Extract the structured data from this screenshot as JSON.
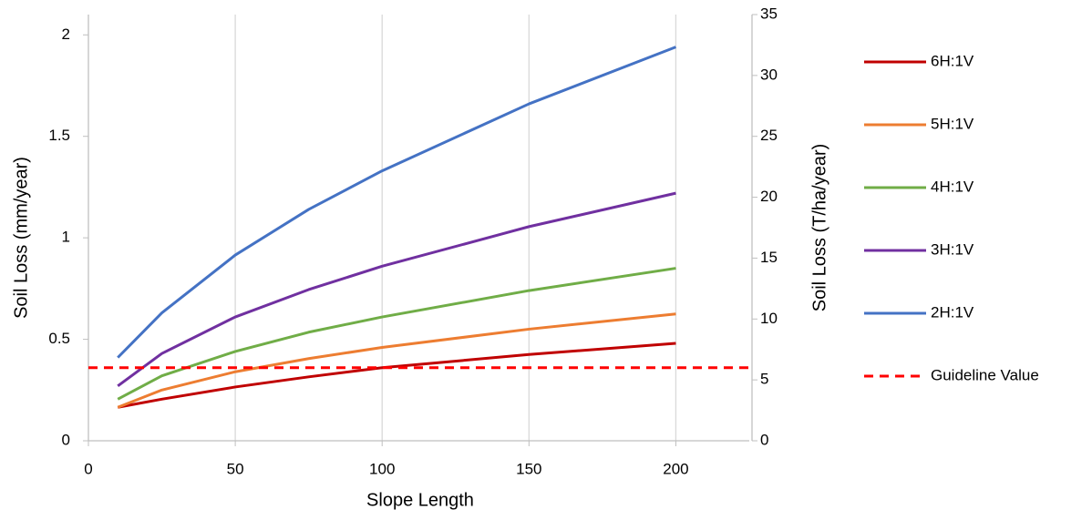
{
  "chart_data": {
    "type": "line",
    "x_label": "Slope Length",
    "y_label": "Soil Loss (mm/year)",
    "y2_label": "Soil Loss (T/ha/year)",
    "x": [
      10,
      25,
      50,
      75,
      100,
      150,
      200
    ],
    "xlim": [
      0,
      225
    ],
    "xticks": [
      0,
      50,
      100,
      150,
      200
    ],
    "ylim": [
      0,
      2.1
    ],
    "yticks": [
      0,
      0.5,
      1,
      1.5,
      2
    ],
    "y2lim": [
      0,
      35
    ],
    "y2ticks": [
      0,
      5,
      10,
      15,
      20,
      25,
      30,
      35
    ],
    "grid": true,
    "legend": "right",
    "series": [
      {
        "name": "6H:1V",
        "color": "#c00000",
        "values": [
          0.165,
          0.205,
          0.265,
          0.315,
          0.36,
          0.425,
          0.48
        ]
      },
      {
        "name": "5H:1V",
        "color": "#ed7d31",
        "values": [
          0.165,
          0.25,
          0.34,
          0.405,
          0.46,
          0.55,
          0.625
        ]
      },
      {
        "name": "4H:1V",
        "color": "#70ad47",
        "values": [
          0.205,
          0.32,
          0.44,
          0.535,
          0.61,
          0.74,
          0.85
        ]
      },
      {
        "name": "3H:1V",
        "color": "#7030a0",
        "values": [
          0.27,
          0.43,
          0.61,
          0.745,
          0.86,
          1.055,
          1.22
        ]
      },
      {
        "name": "2H:1V",
        "color": "#4472c4",
        "values": [
          0.41,
          0.63,
          0.915,
          1.14,
          1.33,
          1.66,
          1.94
        ]
      }
    ],
    "guideline": {
      "name": "Guideline Value",
      "color": "#ff0000",
      "value": 6,
      "axis": "y2",
      "dashed": true
    }
  }
}
